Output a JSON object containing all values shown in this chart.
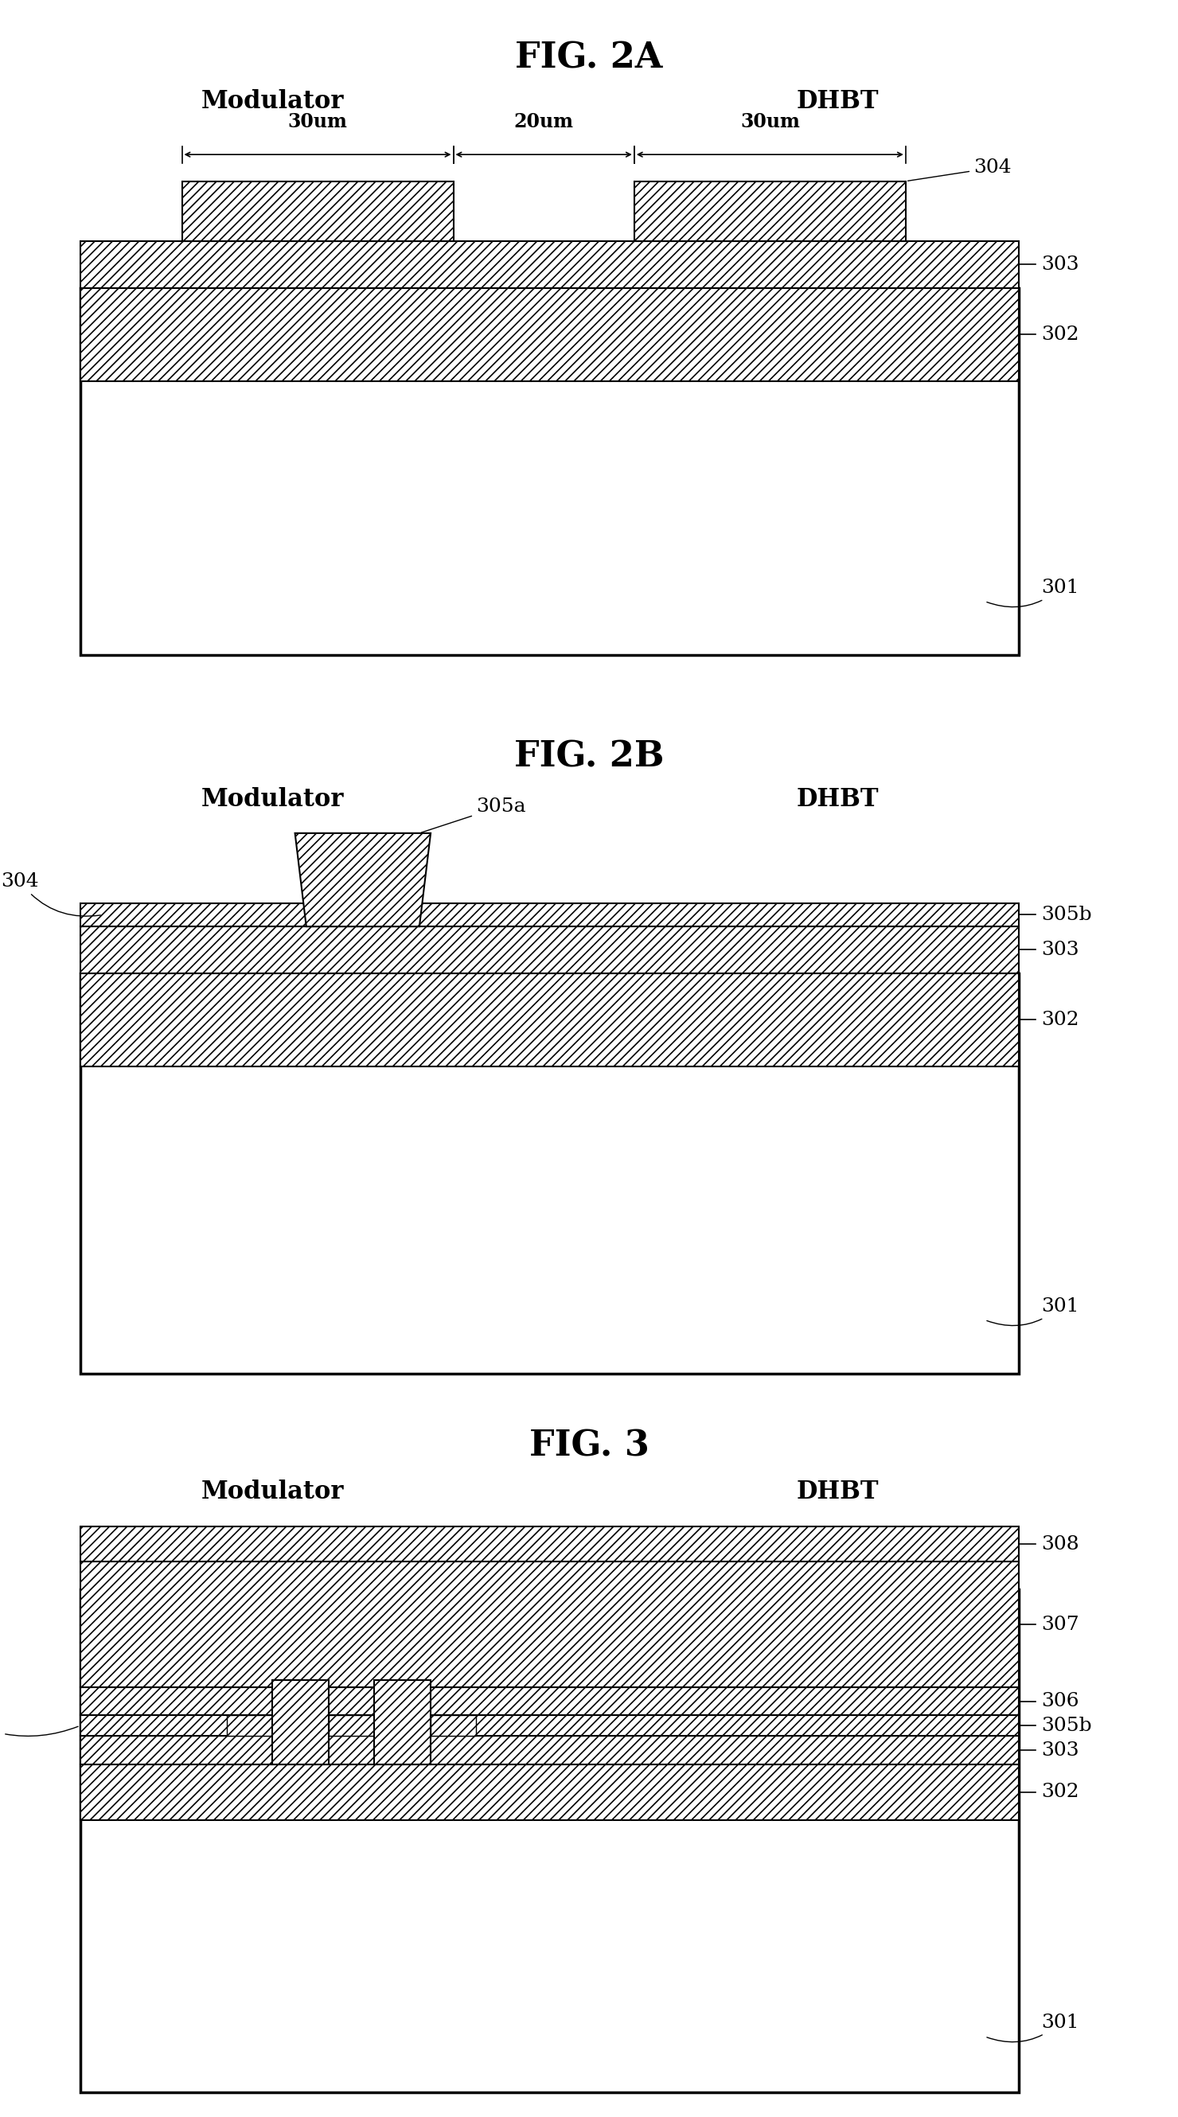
{
  "bg_color": "#ffffff",
  "fig_title_2a": "FIG. 2A",
  "fig_title_2b": "FIG. 2B",
  "fig_title_3": "FIG. 3",
  "label_modulator": "Modulator",
  "label_dhbt": "DHBT",
  "font_size_title": 32,
  "font_size_label": 22,
  "font_size_ref": 18,
  "font_size_dim": 17,
  "hatch_diagonal": "///",
  "hatch_dense": "XXX"
}
